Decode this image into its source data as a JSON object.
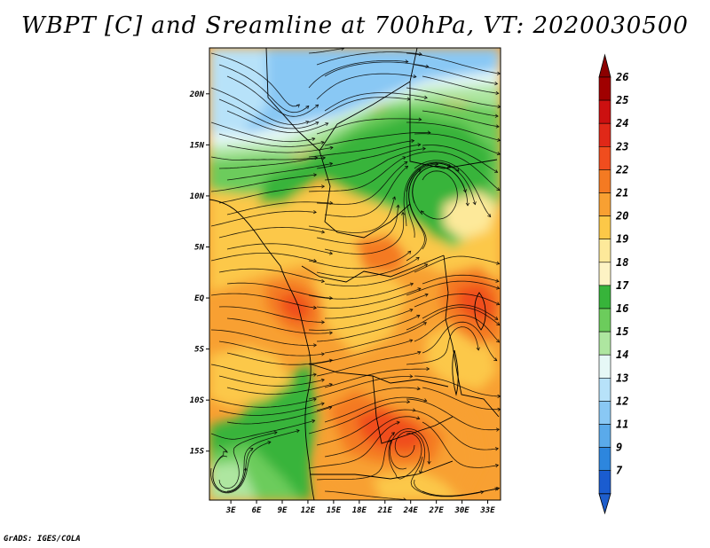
{
  "title": "WBPT [C] and Sreamline at 700hPa, VT: 2020030500",
  "footer": "GrADS: IGES/COLA",
  "map": {
    "lat_labels": [
      "20N",
      "15N",
      "10N",
      "5N",
      "EQ",
      "5S",
      "10S",
      "15S"
    ],
    "lat_values": [
      20,
      15,
      10,
      5,
      0,
      -5,
      -10,
      -15
    ],
    "lon_labels": [
      "3E",
      "6E",
      "9E",
      "12E",
      "15E",
      "18E",
      "21E",
      "24E",
      "27E",
      "30E",
      "33E"
    ],
    "lon_values": [
      3,
      6,
      9,
      12,
      15,
      18,
      21,
      24,
      27,
      30,
      33
    ],
    "lon_range": [
      0.5,
      34.5
    ],
    "lat_range": [
      -19.8,
      24.5
    ]
  },
  "colorbar": {
    "labels": [
      "26",
      "25",
      "24",
      "23",
      "22",
      "21",
      "20",
      "19",
      "18",
      "17",
      "16",
      "15",
      "14",
      "13",
      "12",
      "11",
      "9",
      "7"
    ],
    "colors": [
      "#a00000",
      "#cc1010",
      "#e02818",
      "#f04d1e",
      "#f47a22",
      "#f8a032",
      "#fcc848",
      "#fde99a",
      "#fdf3c4",
      "#37b43a",
      "#6ccc5c",
      "#aee6a0",
      "#e6f8f6",
      "#b7e2f9",
      "#89c8f4",
      "#5aaaea",
      "#2d86de",
      "#1a5cd0"
    ],
    "top_color": "#8c0000",
    "bottom_color": "#1e5ecc"
  }
}
